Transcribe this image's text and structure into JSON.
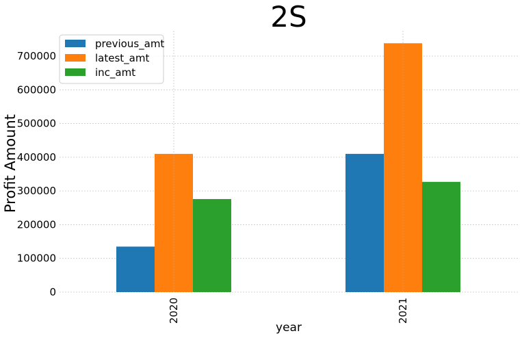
{
  "chart_data": {
    "type": "bar",
    "title": "2S",
    "xlabel": "year",
    "ylabel": "Profit Amount",
    "categories": [
      "2020",
      "2021"
    ],
    "series": [
      {
        "name": "previous_amt",
        "color": "#1f77b4",
        "values": [
          135000,
          410000
        ]
      },
      {
        "name": "latest_amt",
        "color": "#ff7f0e",
        "values": [
          410000,
          738000
        ]
      },
      {
        "name": "inc_amt",
        "color": "#2ca02c",
        "values": [
          276000,
          327000
        ]
      }
    ],
    "y_ticks": [
      "0",
      "100000",
      "200000",
      "300000",
      "400000",
      "500000",
      "600000",
      "700000"
    ],
    "ylim": [
      0,
      775000
    ],
    "grid": true,
    "legend_position": "top-left",
    "x_tick_rotation": "vertical"
  }
}
